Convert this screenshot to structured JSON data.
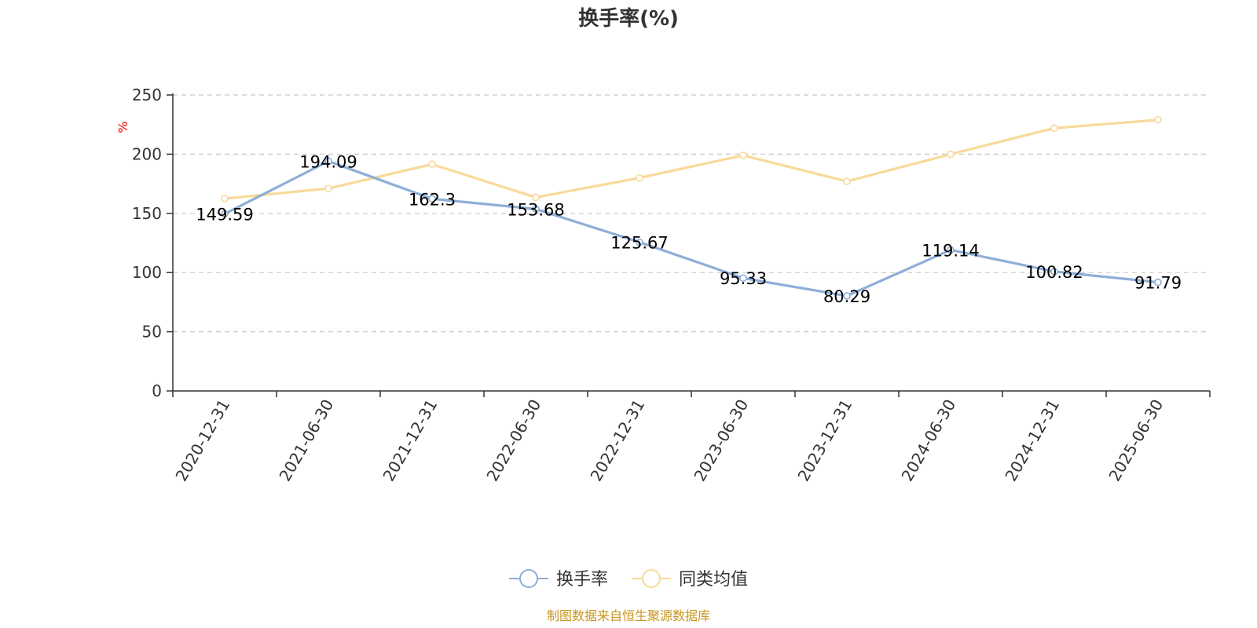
{
  "chart_data": {
    "type": "line",
    "title": "换手率(%)",
    "ylabel": "%",
    "ylim": [
      0,
      250
    ],
    "yticks": [
      0,
      50,
      100,
      150,
      200,
      250
    ],
    "grid": true,
    "legend_position": "bottom-center",
    "categories": [
      "2020-12-31",
      "2021-06-30",
      "2021-12-31",
      "2022-06-30",
      "2022-12-31",
      "2023-06-30",
      "2023-12-31",
      "2024-06-30",
      "2024-12-31",
      "2025-06-30"
    ],
    "series": [
      {
        "name": "换手率",
        "color": "#8eaed8",
        "values": [
          149.59,
          194.09,
          162.3,
          153.68,
          125.67,
          95.33,
          80.29,
          119.14,
          100.82,
          91.79
        ],
        "labels": [
          "149.59",
          "194.09",
          "162.3",
          "153.68",
          "125.67",
          "95.33",
          "80.29",
          "119.14",
          "100.82",
          "91.79"
        ],
        "show_labels": true
      },
      {
        "name": "同类均值",
        "color": "#f9d99a",
        "values": [
          162.5,
          171.0,
          191.5,
          163.5,
          180.0,
          199.0,
          177.0,
          200.0,
          222.0,
          229.0
        ],
        "show_labels": false
      }
    ]
  },
  "source_text": "制图数据来自恒生聚源数据库"
}
